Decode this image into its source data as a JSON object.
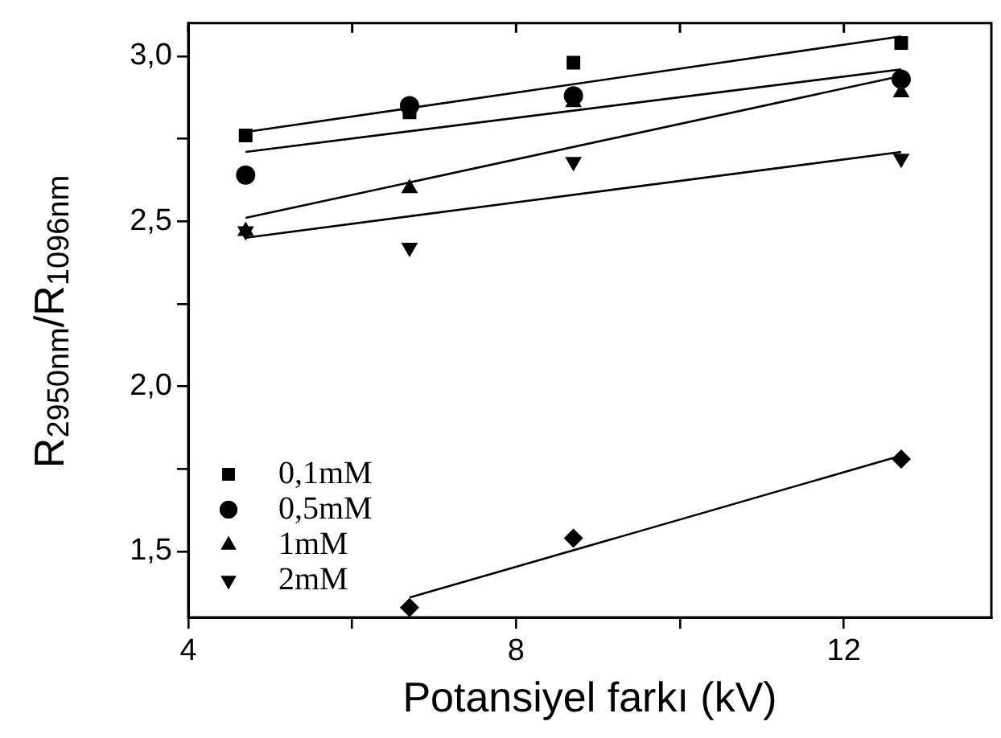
{
  "chart_data": {
    "type": "scatter",
    "xlabel": "Potansiyel farkı (kV)",
    "ylabel": "R$_{2950nm}$/R$_{1096nm}$",
    "xlim": [
      4,
      13.8
    ],
    "xticks": [
      4,
      {
        "value": 6,
        "label": null
      },
      8,
      {
        "value": 10,
        "label": null
      },
      12
    ],
    "ylim": [
      1.3,
      3.1
    ],
    "yticks": [
      {
        "value": 1.5,
        "label": "1,5"
      },
      {
        "value": 1.75,
        "label": null
      },
      {
        "value": 2,
        "label": "2,0"
      },
      {
        "value": 2.25,
        "label": null
      },
      {
        "value": 2.5,
        "label": "2,5"
      },
      {
        "value": 2.75,
        "label": null
      },
      {
        "value": 3,
        "label": "3,0"
      }
    ],
    "grid": false,
    "legend": "bottom left",
    "series": [
      {
        "name": "0,1mM",
        "type": "scatter",
        "marker": "square",
        "color": "#000000",
        "x": [
          4.7,
          6.7,
          8.7,
          12.7
        ],
        "values": [
          2.76,
          2.83,
          2.98,
          3.04
        ]
      },
      {
        "name": "0,5mM",
        "type": "scatter",
        "marker": "circle",
        "color": "#000000",
        "x": [
          4.7,
          6.7,
          8.7,
          12.7
        ],
        "values": [
          2.64,
          2.85,
          2.88,
          2.93
        ]
      },
      {
        "name": "1mM",
        "type": "scatter",
        "marker": "triangle",
        "color": "#000000",
        "x": [
          4.7,
          6.7,
          8.7,
          12.7
        ],
        "values": [
          2.47,
          2.6,
          2.86,
          2.89
        ]
      },
      {
        "name": "2mM",
        "type": "scatter",
        "marker": "triangle-down",
        "color": "#000000",
        "x": [
          4.7,
          6.7,
          8.7,
          12.7
        ],
        "values": [
          2.47,
          2.42,
          2.68,
          2.69
        ]
      },
      {
        "type": "scatter",
        "marker": "diamond",
        "color": "#000000",
        "x": [
          6.7,
          8.7,
          12.7
        ],
        "values": [
          1.33,
          1.54,
          1.78
        ]
      },
      {
        "type": "line",
        "marker": "none",
        "color": "#000000",
        "x": [
          4.7,
          12.7
        ],
        "values": [
          2.77,
          3.06
        ]
      },
      {
        "type": "line",
        "marker": "none",
        "color": "#000000",
        "x": [
          4.7,
          12.7
        ],
        "values": [
          2.71,
          2.96
        ]
      },
      {
        "type": "line",
        "marker": "none",
        "color": "#000000",
        "x": [
          4.7,
          12.7
        ],
        "values": [
          2.51,
          2.94
        ]
      },
      {
        "type": "line",
        "marker": "none",
        "color": "#000000",
        "x": [
          4.7,
          12.7
        ],
        "values": [
          2.45,
          2.71
        ]
      },
      {
        "type": "line",
        "marker": "none",
        "color": "#000000",
        "x": [
          6.7,
          12.7
        ],
        "values": [
          1.36,
          1.79
        ]
      }
    ]
  }
}
